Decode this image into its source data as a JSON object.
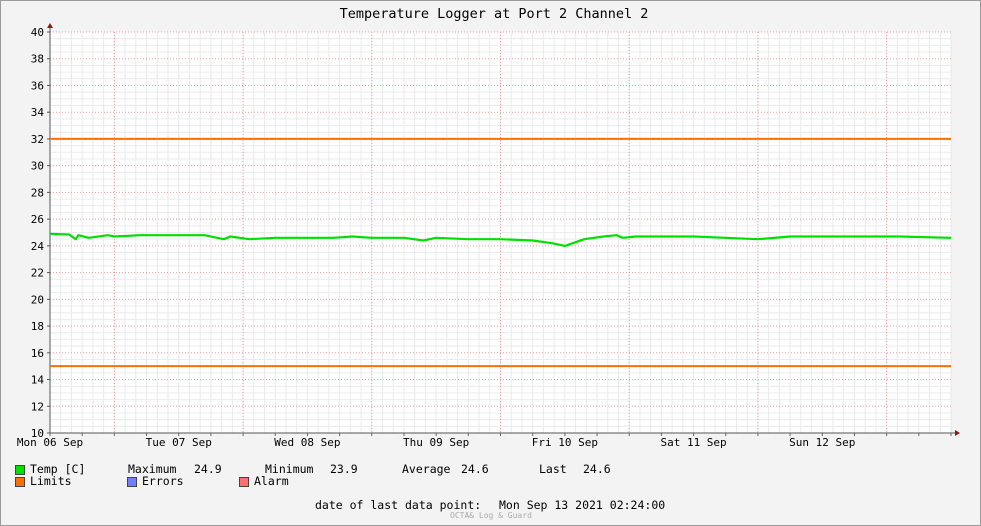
{
  "chart_data": {
    "type": "line",
    "title": "Temperature Logger at Port 2 Channel 2",
    "ylim": [
      10,
      40
    ],
    "y_ticks": [
      10,
      12,
      14,
      16,
      18,
      20,
      22,
      24,
      26,
      28,
      30,
      32,
      34,
      36,
      38,
      40
    ],
    "x_tick_labels": [
      "Mon 06 Sep",
      "Tue 07 Sep",
      "Wed 08 Sep",
      "Thu 09 Sep",
      "Fri 10 Sep",
      "Sat 11 Sep",
      "Sun 12 Sep"
    ],
    "x_range_days": [
      0,
      7
    ],
    "limit_lines": [
      32,
      15
    ],
    "series": [
      {
        "name": "Temp [C]",
        "color": "#00e000",
        "x": [
          0,
          0.15,
          0.2,
          0.22,
          0.3,
          0.45,
          0.5,
          0.7,
          1.0,
          1.2,
          1.35,
          1.4,
          1.55,
          1.75,
          1.9,
          2.0,
          2.2,
          2.35,
          2.5,
          2.75,
          2.9,
          3.0,
          3.25,
          3.4,
          3.5,
          3.75,
          3.9,
          4.0,
          4.15,
          4.3,
          4.4,
          4.45,
          4.55,
          4.65,
          4.7,
          4.8,
          5.0,
          5.25,
          5.5,
          5.75,
          5.85,
          6.0,
          6.3,
          6.6,
          7.0
        ],
        "y": [
          24.9,
          24.85,
          24.5,
          24.8,
          24.6,
          24.8,
          24.7,
          24.8,
          24.8,
          24.8,
          24.5,
          24.7,
          24.5,
          24.6,
          24.6,
          24.6,
          24.6,
          24.7,
          24.6,
          24.6,
          24.4,
          24.6,
          24.5,
          24.5,
          24.5,
          24.4,
          24.2,
          24.0,
          24.5,
          24.7,
          24.8,
          24.6,
          24.7,
          24.7,
          24.7,
          24.7,
          24.7,
          24.6,
          24.5,
          24.7,
          24.7,
          24.7,
          24.7,
          24.7,
          24.6
        ]
      },
      {
        "name": "Limits",
        "color": "#ff6f00"
      }
    ]
  },
  "legend": {
    "temp": {
      "label": "Temp [C]",
      "color": "#00e000"
    },
    "limits": {
      "label": "Limits",
      "color": "#ff6f00"
    },
    "errors": {
      "label": "Errors",
      "color": "#6f7fff"
    },
    "alarm": {
      "label": "Alarm",
      "color": "#ff7070"
    }
  },
  "stats": {
    "maximum_label": "Maximum",
    "maximum_value": "24.9",
    "minimum_label": "Minimum",
    "minimum_value": "23.9",
    "average_label": "Average",
    "average_value": "24.6",
    "last_label": "Last",
    "last_value": "24.6"
  },
  "footer": {
    "date_label": "date of last data point:",
    "date_value": "Mon Sep 13 2021 02:24:00",
    "watermark": "OCTA& Log & Guard"
  }
}
